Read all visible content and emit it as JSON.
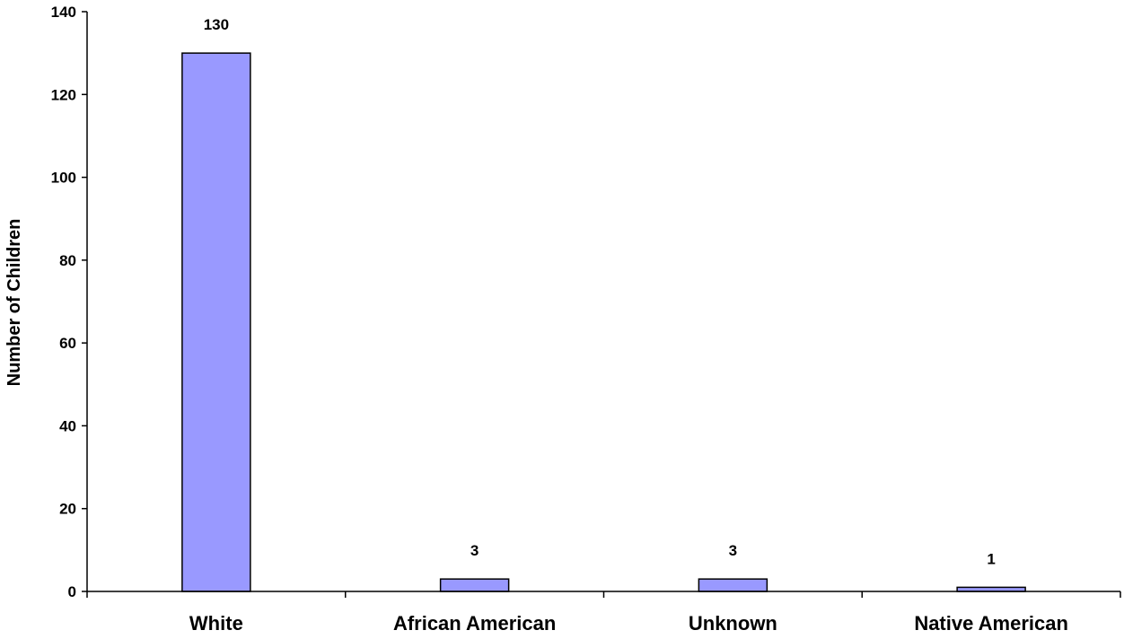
{
  "chart_data": {
    "type": "bar",
    "title": "",
    "xlabel": "",
    "ylabel": "Number of Children",
    "categories": [
      "White",
      "African American",
      "Unknown",
      "Native American"
    ],
    "values": [
      130,
      3,
      3,
      1
    ],
    "data_labels": [
      "130",
      "3",
      "3",
      "1"
    ],
    "ylim": [
      0,
      140
    ],
    "yticks": [
      0,
      20,
      40,
      60,
      80,
      100,
      120,
      140
    ],
    "grid": false,
    "legend": "none",
    "colors": {
      "bar_fill": "#9999FF",
      "bar_stroke": "#000000",
      "axis": "#000000",
      "background": "#FFFFFF"
    }
  }
}
